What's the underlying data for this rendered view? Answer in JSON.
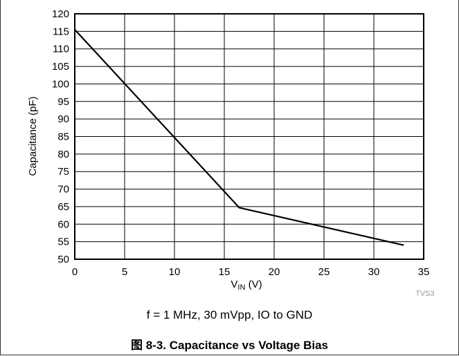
{
  "chart_data": {
    "type": "line",
    "xlabel": {
      "main": "V",
      "sub": "IN",
      "unit": " (V)"
    },
    "ylabel": "Capacitance (pF)",
    "xlim": [
      0,
      35
    ],
    "ylim": [
      50,
      120
    ],
    "x_ticks": [
      0,
      5,
      10,
      15,
      20,
      25,
      30,
      35
    ],
    "y_ticks": [
      50,
      55,
      60,
      65,
      70,
      75,
      80,
      85,
      90,
      95,
      100,
      105,
      110,
      115,
      120
    ],
    "grid": true,
    "series": [
      {
        "x": [
          0,
          16.5,
          33
        ],
        "y": [
          115.5,
          64.7,
          54
        ],
        "color": "#000000"
      }
    ]
  },
  "figure": {
    "code": "TVS3",
    "condition": "f = 1 MHz, 30 mVpp, IO to GND",
    "caption": "图 8-3. Capacitance vs Voltage Bias"
  }
}
